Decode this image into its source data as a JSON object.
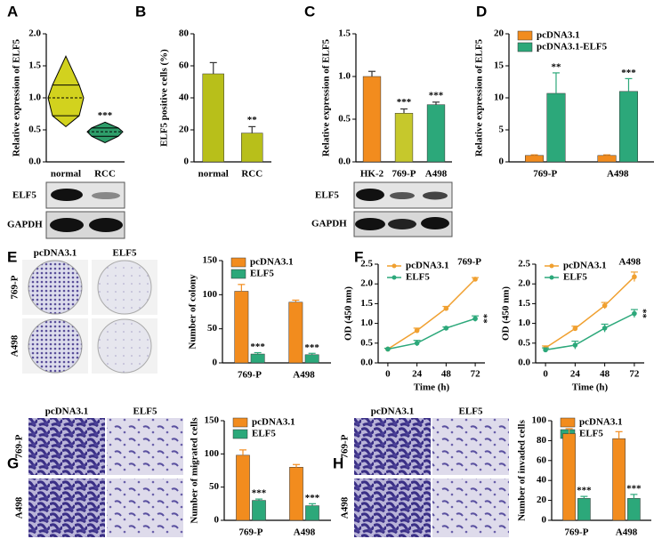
{
  "chart_data": [
    {
      "panel": "A",
      "type": "violin",
      "ylabel": "Relative expression of ELF5",
      "categories": [
        "normal",
        "RCC"
      ],
      "colors": [
        "#d2d21e",
        "#2e9e6a"
      ],
      "stats": [
        {
          "min": 0.55,
          "q1": 0.72,
          "median": 1.0,
          "q3": 1.2,
          "max": 1.65
        },
        {
          "min": 0.3,
          "q1": 0.4,
          "median": 0.47,
          "q3": 0.53,
          "max": 0.62
        }
      ],
      "labels": [
        null,
        "***"
      ],
      "ylim": [
        0,
        2
      ],
      "yticks": [
        {
          "value": 0,
          "label": "0.0"
        },
        0.5,
        {
          "value": 1,
          "label": "1.0"
        },
        1.5,
        {
          "value": 2,
          "label": "2.0"
        }
      ],
      "blot_labels": [
        "ELF5",
        "GAPDH"
      ]
    },
    {
      "panel": "B",
      "type": "bar",
      "ylabel": "ELF5 positive cells (%)",
      "categories": [
        "normal",
        "RCC"
      ],
      "values": [
        55,
        18
      ],
      "errors": [
        7,
        4
      ],
      "color": "#b8bf1a",
      "labels": [
        null,
        "**"
      ],
      "ylim": [
        0,
        80
      ],
      "yticks": [
        0,
        20,
        40,
        60,
        80
      ]
    },
    {
      "panel": "C",
      "type": "bar",
      "ylabel": "Relative expression of ELF5",
      "categories": [
        "HK-2",
        "769-P",
        "A498"
      ],
      "values": [
        1.0,
        0.57,
        0.67
      ],
      "errors": [
        0.06,
        0.05,
        0.03
      ],
      "colors": [
        "#f28c1e",
        "#c6c82c",
        "#2ca87a"
      ],
      "labels": [
        null,
        "***",
        "***"
      ],
      "ylim": [
        0,
        1.5
      ],
      "yticks": [
        {
          "value": 0,
          "label": "0.0"
        },
        0.5,
        {
          "value": 1,
          "label": "1.0"
        },
        1.5
      ],
      "blot_labels": [
        "ELF5",
        "GAPDH"
      ]
    },
    {
      "panel": "D",
      "type": "bar",
      "ylabel": "Relative expression of ELF5",
      "categories": [
        "769-P",
        "A498"
      ],
      "legend": "upper-left",
      "series": [
        {
          "name": "pcDNA3.1",
          "color": "#f28c1e",
          "values": [
            1.0,
            1.0
          ],
          "errors": [
            0.1,
            0.1
          ]
        },
        {
          "name": "pcDNA3.1-ELF5",
          "color": "#2ca87a",
          "values": [
            10.7,
            11.0
          ],
          "errors": [
            3.2,
            2.0
          ],
          "labels": [
            "**",
            "***"
          ]
        }
      ],
      "ylim": [
        0,
        20
      ],
      "yticks": [
        0,
        5,
        10,
        15,
        20
      ]
    },
    {
      "panel": "E",
      "type": "bar",
      "ylabel": "Number of colony",
      "categories": [
        "769-P",
        "A498"
      ],
      "legend": "upper-left",
      "series": [
        {
          "name": "pcDNA3.1",
          "color": "#f28c1e",
          "values": [
            105,
            89
          ],
          "errors": [
            10,
            3
          ]
        },
        {
          "name": "ELF5",
          "color": "#2ca87a",
          "values": [
            13,
            12
          ],
          "errors": [
            2,
            2
          ],
          "labels": [
            "***",
            "***"
          ]
        }
      ],
      "ylim": [
        0,
        150
      ],
      "yticks": [
        0,
        50,
        100,
        150
      ],
      "image_columns": [
        "pcDNA3.1",
        "ELF5"
      ],
      "image_rows": [
        "769-P",
        "A498"
      ]
    },
    {
      "panel": "F",
      "type": "line",
      "title": "769-P",
      "xlabel": "Time (h)",
      "ylabel": "OD (450 nm)",
      "x": [
        0,
        24,
        48,
        72
      ],
      "legend": "upper-left",
      "series": [
        {
          "name": "pcDNA3.1",
          "color": "#f0a030",
          "values": [
            0.35,
            0.82,
            1.38,
            2.12
          ],
          "errors": [
            0.02,
            0.06,
            0.05,
            0.04
          ]
        },
        {
          "name": "ELF5",
          "color": "#2ca87a",
          "values": [
            0.35,
            0.5,
            0.88,
            1.12
          ],
          "errors": [
            0.02,
            0.07,
            0.03,
            0.07
          ],
          "labels": [
            null,
            null,
            null,
            "**"
          ]
        }
      ],
      "xlim": [
        -8,
        80
      ],
      "xticks": [
        0,
        24,
        48,
        72
      ],
      "ylim": [
        0,
        2.5
      ],
      "yticks": [
        {
          "value": 0,
          "label": "0.0"
        },
        0.5,
        {
          "value": 1,
          "label": "1.0"
        },
        1.5,
        {
          "value": 2,
          "label": "2.0"
        },
        2.5
      ]
    },
    {
      "type": "line",
      "title": "A498",
      "xlabel": "Time (h)",
      "ylabel": "OD (450 nm)",
      "x": [
        0,
        24,
        48,
        72
      ],
      "legend": "upper-left",
      "series": [
        {
          "name": "pcDNA3.1",
          "color": "#f0a030",
          "values": [
            0.38,
            0.87,
            1.45,
            2.18
          ],
          "errors": [
            0.05,
            0.06,
            0.08,
            0.12
          ]
        },
        {
          "name": "ELF5",
          "color": "#2ca87a",
          "values": [
            0.33,
            0.45,
            0.88,
            1.25
          ],
          "errors": [
            0.05,
            0.1,
            0.1,
            0.1
          ],
          "labels": [
            null,
            null,
            null,
            "**"
          ]
        }
      ],
      "xlim": [
        -8,
        80
      ],
      "xticks": [
        0,
        24,
        48,
        72
      ],
      "ylim": [
        0,
        2.5
      ],
      "yticks": [
        {
          "value": 0,
          "label": "0.0"
        },
        0.5,
        {
          "value": 1,
          "label": "1.0"
        },
        1.5,
        {
          "value": 2,
          "label": "2.0"
        },
        2.5
      ]
    },
    {
      "panel": "G",
      "type": "bar",
      "ylabel": "Number of migrated cells",
      "categories": [
        "769-P",
        "A498"
      ],
      "legend": "upper-left",
      "series": [
        {
          "name": "pcDNA3.1",
          "color": "#f28c1e",
          "values": [
            98,
            80
          ],
          "errors": [
            8,
            4
          ]
        },
        {
          "name": "ELF5",
          "color": "#2ca87a",
          "values": [
            30,
            22
          ],
          "errors": [
            2,
            3
          ],
          "labels": [
            "***",
            "***"
          ]
        }
      ],
      "ylim": [
        0,
        150
      ],
      "yticks": [
        0,
        50,
        100,
        150
      ],
      "image_columns": [
        "pcDNA3.1",
        "ELF5"
      ],
      "image_rows": [
        "769-P",
        "A498"
      ]
    },
    {
      "panel": "H",
      "type": "bar",
      "ylabel": "Number of invaded cells",
      "categories": [
        "769-P",
        "A498"
      ],
      "legend": "upper-left",
      "series": [
        {
          "name": "pcDNA3.1",
          "color": "#f28c1e",
          "values": [
            87,
            82
          ],
          "errors": [
            5,
            7
          ]
        },
        {
          "name": "ELF5",
          "color": "#2ca87a",
          "values": [
            22,
            22
          ],
          "errors": [
            2,
            4
          ],
          "labels": [
            "***",
            "***"
          ]
        }
      ],
      "ylim": [
        0,
        100
      ],
      "yticks": [
        0,
        20,
        40,
        60,
        80,
        100
      ],
      "image_columns": [
        "pcDNA3.1",
        "ELF5"
      ],
      "image_rows": [
        "769-P",
        "A498"
      ]
    }
  ]
}
